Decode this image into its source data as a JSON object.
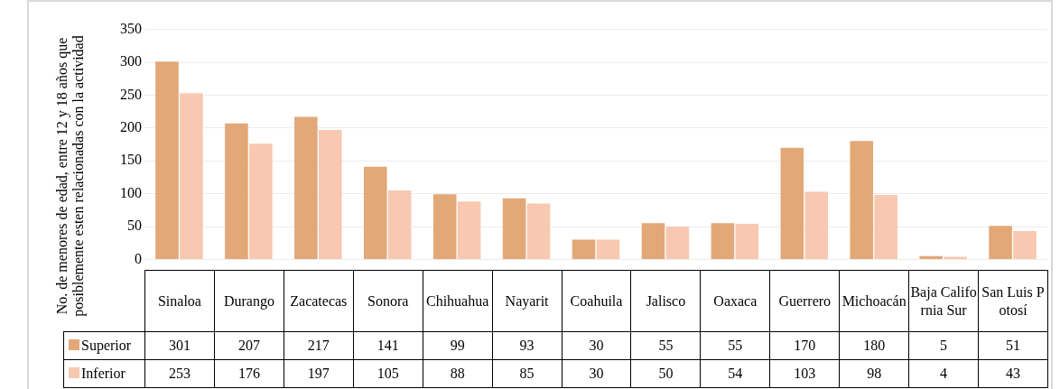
{
  "chart_data": {
    "type": "bar",
    "ylabel": "No. de menores de edad, entre 12 y 18 años que posiblemente esten relacionadas con la actividad",
    "categories": [
      "Sinaloa",
      "Durango",
      "Zacatecas",
      "Sonora",
      "Chihuahua",
      "Nayarit",
      "Coahuila",
      "Jalisco",
      "Oaxaca",
      "Guerrero",
      "Michoacán",
      "Baja California Sur",
      "San Luis Potosí"
    ],
    "series": [
      {
        "name": "Superior",
        "color": "#e3a878",
        "values": [
          301,
          207,
          217,
          141,
          99,
          93,
          30,
          55,
          55,
          170,
          180,
          5,
          51
        ]
      },
      {
        "name": "Inferior",
        "color": "#f8c8b0",
        "values": [
          253,
          176,
          197,
          105,
          88,
          85,
          30,
          50,
          54,
          103,
          98,
          4,
          43
        ]
      }
    ],
    "ylim": [
      0,
      350
    ],
    "yticks": [
      0,
      50,
      100,
      150,
      200,
      250,
      300,
      350
    ],
    "grid": "y",
    "legend": "bottom",
    "data_labels": true
  }
}
